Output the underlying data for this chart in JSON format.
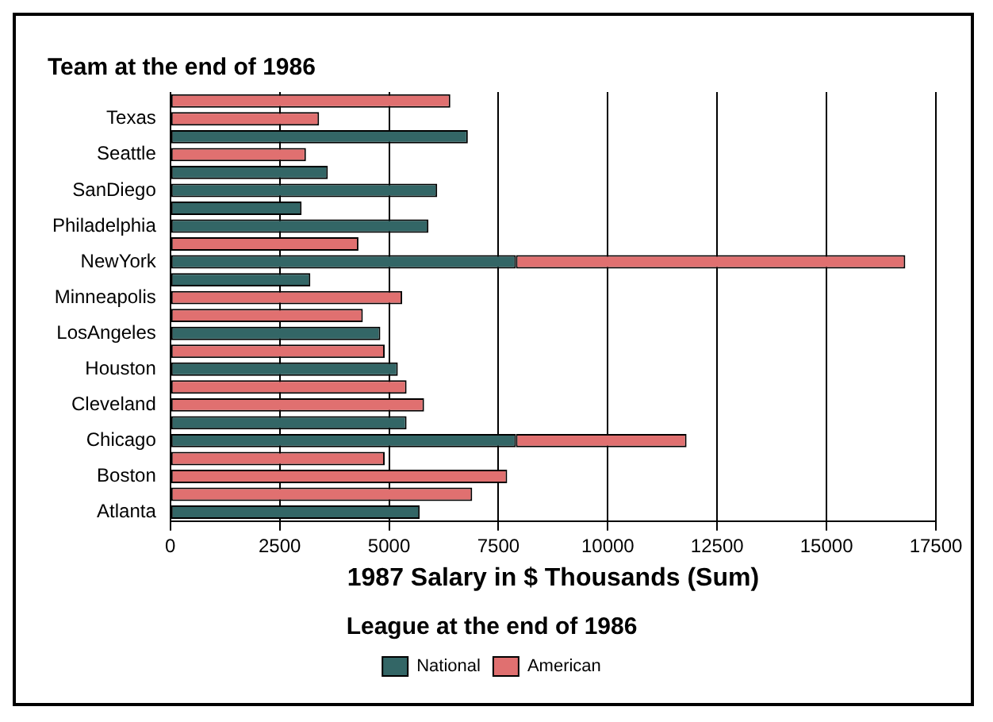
{
  "chart_data": {
    "type": "bar",
    "orientation": "horizontal",
    "stacked": true,
    "ylabel": "Team at the end of 1986",
    "xlabel": "1987 Salary in $ Thousands (Sum)",
    "legend_title": "League at the end of 1986",
    "categories": [
      null,
      "Texas",
      null,
      "Seattle",
      null,
      "SanDiego",
      null,
      "Philadelphia",
      null,
      "NewYork",
      null,
      "Minneapolis",
      null,
      "LosAngeles",
      null,
      "Houston",
      null,
      "Cleveland",
      null,
      "Chicago",
      null,
      "Boston",
      null,
      "Atlanta"
    ],
    "series": [
      {
        "name": "National",
        "color": "#336666",
        "values": [
          null,
          null,
          6800,
          null,
          3600,
          6100,
          3000,
          5900,
          null,
          7900,
          3200,
          null,
          null,
          4800,
          null,
          5200,
          null,
          null,
          5400,
          7900,
          null,
          null,
          null,
          5700
        ]
      },
      {
        "name": "American",
        "color": "#e07070",
        "values": [
          6400,
          3400,
          null,
          3100,
          null,
          null,
          null,
          null,
          4300,
          8900,
          null,
          5300,
          4400,
          null,
          4900,
          null,
          5400,
          5800,
          null,
          3900,
          4900,
          7700,
          6900,
          null
        ]
      }
    ],
    "xlim": [
      0,
      17500
    ],
    "xticks": [
      0,
      2500,
      5000,
      7500,
      10000,
      12500,
      15000,
      17500
    ],
    "grid": "x",
    "legend": "bottom"
  }
}
